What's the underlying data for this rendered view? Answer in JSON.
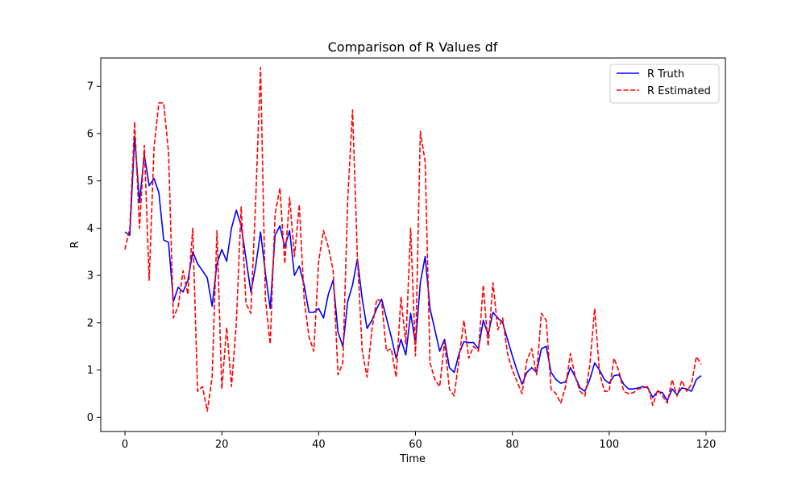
{
  "chart_data": {
    "type": "line",
    "title": "Comparison of R Values df",
    "xlabel": "Time",
    "ylabel": "R",
    "xlim": [
      -5,
      124
    ],
    "ylim": [
      -0.3,
      7.6
    ],
    "xticks": [
      0,
      20,
      40,
      60,
      80,
      100,
      120
    ],
    "yticks": [
      0,
      1,
      2,
      3,
      4,
      5,
      6,
      7
    ],
    "grid": false,
    "legend_position": "top-right",
    "x": [
      0,
      1,
      2,
      3,
      4,
      5,
      6,
      7,
      8,
      9,
      10,
      11,
      12,
      13,
      14,
      15,
      16,
      17,
      18,
      19,
      20,
      21,
      22,
      23,
      24,
      25,
      26,
      27,
      28,
      29,
      30,
      31,
      32,
      33,
      34,
      35,
      36,
      37,
      38,
      39,
      40,
      41,
      42,
      43,
      44,
      45,
      46,
      47,
      48,
      49,
      50,
      51,
      52,
      53,
      54,
      55,
      56,
      57,
      58,
      59,
      60,
      61,
      62,
      63,
      64,
      65,
      66,
      67,
      68,
      69,
      70,
      71,
      72,
      73,
      74,
      75,
      76,
      77,
      78,
      79,
      80,
      81,
      82,
      83,
      84,
      85,
      86,
      87,
      88,
      89,
      90,
      91,
      92,
      93,
      94,
      95,
      96,
      97,
      98,
      99,
      100,
      101,
      102,
      103,
      104,
      105,
      106,
      107,
      108,
      109,
      110,
      111,
      112,
      113,
      114,
      115,
      116,
      117,
      118,
      119
    ],
    "series": [
      {
        "name": "R Truth",
        "color": "#0000ff",
        "style": "solid",
        "values": [
          3.92,
          3.85,
          5.95,
          4.55,
          5.55,
          4.9,
          5.05,
          4.75,
          3.75,
          3.7,
          2.45,
          2.75,
          2.65,
          2.9,
          3.5,
          3.25,
          3.1,
          2.95,
          2.35,
          3.25,
          3.55,
          3.3,
          4.0,
          4.38,
          4.05,
          3.35,
          2.65,
          3.2,
          3.92,
          3.05,
          2.3,
          3.85,
          4.05,
          3.6,
          3.95,
          3.0,
          3.2,
          2.8,
          2.22,
          2.22,
          2.3,
          2.1,
          2.6,
          2.9,
          1.8,
          1.5,
          2.45,
          2.8,
          3.35,
          2.5,
          1.88,
          2.05,
          2.3,
          2.5,
          2.1,
          1.7,
          1.25,
          1.65,
          1.32,
          2.2,
          1.55,
          2.85,
          3.4,
          2.3,
          1.85,
          1.4,
          1.65,
          1.05,
          0.95,
          1.35,
          1.6,
          1.58,
          1.58,
          1.45,
          2.05,
          1.75,
          2.22,
          2.1,
          2.0,
          1.65,
          1.3,
          0.98,
          0.7,
          0.95,
          1.05,
          0.95,
          1.45,
          1.5,
          0.95,
          0.8,
          0.72,
          0.75,
          1.05,
          0.85,
          0.62,
          0.55,
          0.8,
          1.15,
          1.0,
          0.8,
          0.72,
          0.88,
          0.9,
          0.7,
          0.6,
          0.6,
          0.62,
          0.65,
          0.62,
          0.42,
          0.55,
          0.52,
          0.35,
          0.6,
          0.48,
          0.62,
          0.6,
          0.55,
          0.8,
          0.88
        ]
      },
      {
        "name": "R Estimated",
        "color": "#ff0000",
        "style": "dashed",
        "values": [
          3.55,
          4.0,
          6.25,
          4.0,
          5.75,
          2.9,
          5.7,
          6.65,
          6.65,
          5.6,
          2.1,
          2.35,
          3.1,
          2.6,
          4.0,
          0.55,
          0.65,
          0.13,
          0.85,
          3.95,
          0.6,
          1.9,
          0.65,
          2.0,
          4.45,
          2.4,
          2.2,
          4.6,
          7.4,
          2.5,
          1.55,
          4.3,
          4.85,
          3.25,
          4.65,
          3.4,
          4.5,
          2.5,
          1.7,
          1.4,
          3.3,
          3.95,
          3.6,
          3.1,
          0.9,
          1.15,
          4.6,
          6.5,
          3.4,
          1.4,
          0.85,
          1.85,
          2.5,
          2.45,
          1.4,
          1.45,
          0.85,
          2.55,
          1.55,
          4.0,
          1.3,
          6.05,
          5.4,
          1.15,
          0.8,
          0.65,
          1.6,
          0.6,
          0.45,
          1.25,
          2.05,
          1.25,
          1.5,
          1.4,
          2.8,
          1.5,
          2.85,
          1.85,
          2.1,
          1.35,
          1.0,
          0.75,
          0.5,
          1.2,
          1.45,
          0.9,
          2.2,
          2.05,
          0.6,
          0.5,
          0.3,
          0.65,
          1.35,
          0.85,
          0.55,
          0.45,
          1.1,
          2.3,
          0.95,
          0.55,
          0.55,
          1.25,
          0.98,
          0.55,
          0.5,
          0.52,
          0.6,
          0.62,
          0.65,
          0.25,
          0.58,
          0.45,
          0.3,
          0.8,
          0.45,
          0.78,
          0.55,
          0.7,
          1.28,
          1.12
        ]
      }
    ]
  }
}
